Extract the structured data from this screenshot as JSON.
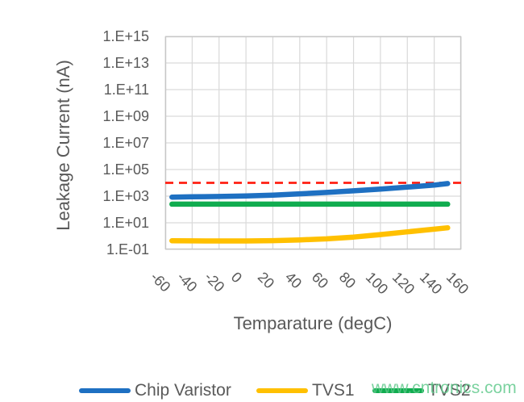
{
  "watermark": "www.cntronics.com",
  "colors": {
    "grid": "#D9D9D9",
    "plot_border": "#C7C7C7",
    "axis_text": "#595959",
    "watermark_green": "#5FC98B",
    "limit_red": "#FF1F12",
    "chip_varistor_blue": "#1E70C2",
    "tvs1_yellow": "#FFC000",
    "tvs2_green": "#10AC4F"
  },
  "chart_data": {
    "type": "line",
    "title": "",
    "xlabel": "Temparature (degC)",
    "ylabel": "Leakage Current (nA)",
    "grid": true,
    "x_axis": {
      "min": -60,
      "max": 160,
      "tick_step": 20,
      "ticks": [
        -60,
        -40,
        -20,
        0,
        20,
        40,
        60,
        80,
        100,
        120,
        140,
        160
      ],
      "tick_labels": [
        "-60",
        "-40",
        "-20",
        "0",
        "20",
        "40",
        "60",
        "80",
        "100",
        "120",
        "140",
        "160"
      ]
    },
    "y_axis": {
      "scale": "log10",
      "unit": "nA",
      "min": 0.1,
      "max": 1000000000000000.0,
      "tick_exponents": [
        15,
        13,
        11,
        9,
        7,
        5,
        3,
        1,
        -1
      ],
      "tick_labels_top_to_bottom": [
        "1.E+15",
        "1.E+13",
        "1.E+11",
        "1.E+09",
        "1.E+07",
        "1.E+05",
        "1.E+03",
        "1.E+01",
        "1.E-01"
      ]
    },
    "reference_line": {
      "value": 10000,
      "style": "dashed",
      "color": "#FF1F12",
      "meaning": "leakage current limit"
    },
    "x": [
      -55,
      -40,
      -20,
      0,
      20,
      40,
      60,
      80,
      100,
      120,
      140,
      150
    ],
    "series": [
      {
        "name": "Chip Varistor",
        "color": "#1E70C2",
        "values": [
          850,
          900,
          950,
          1050,
          1200,
          1500,
          1900,
          2500,
          3400,
          4800,
          6800,
          8800
        ]
      },
      {
        "name": "TVS1",
        "color": "#FFC000",
        "values": [
          0.45,
          0.44,
          0.43,
          0.43,
          0.46,
          0.52,
          0.62,
          0.85,
          1.3,
          2.1,
          3.3,
          4.2
        ]
      },
      {
        "name": "TVS2",
        "color": "#10AC4F",
        "values": [
          250,
          250,
          250,
          250,
          250,
          250,
          250,
          250,
          250,
          250,
          250,
          250
        ]
      }
    ],
    "legend": {
      "position": "bottom",
      "entries": [
        "Chip Varistor",
        "TVS1",
        "TVS2"
      ]
    }
  }
}
